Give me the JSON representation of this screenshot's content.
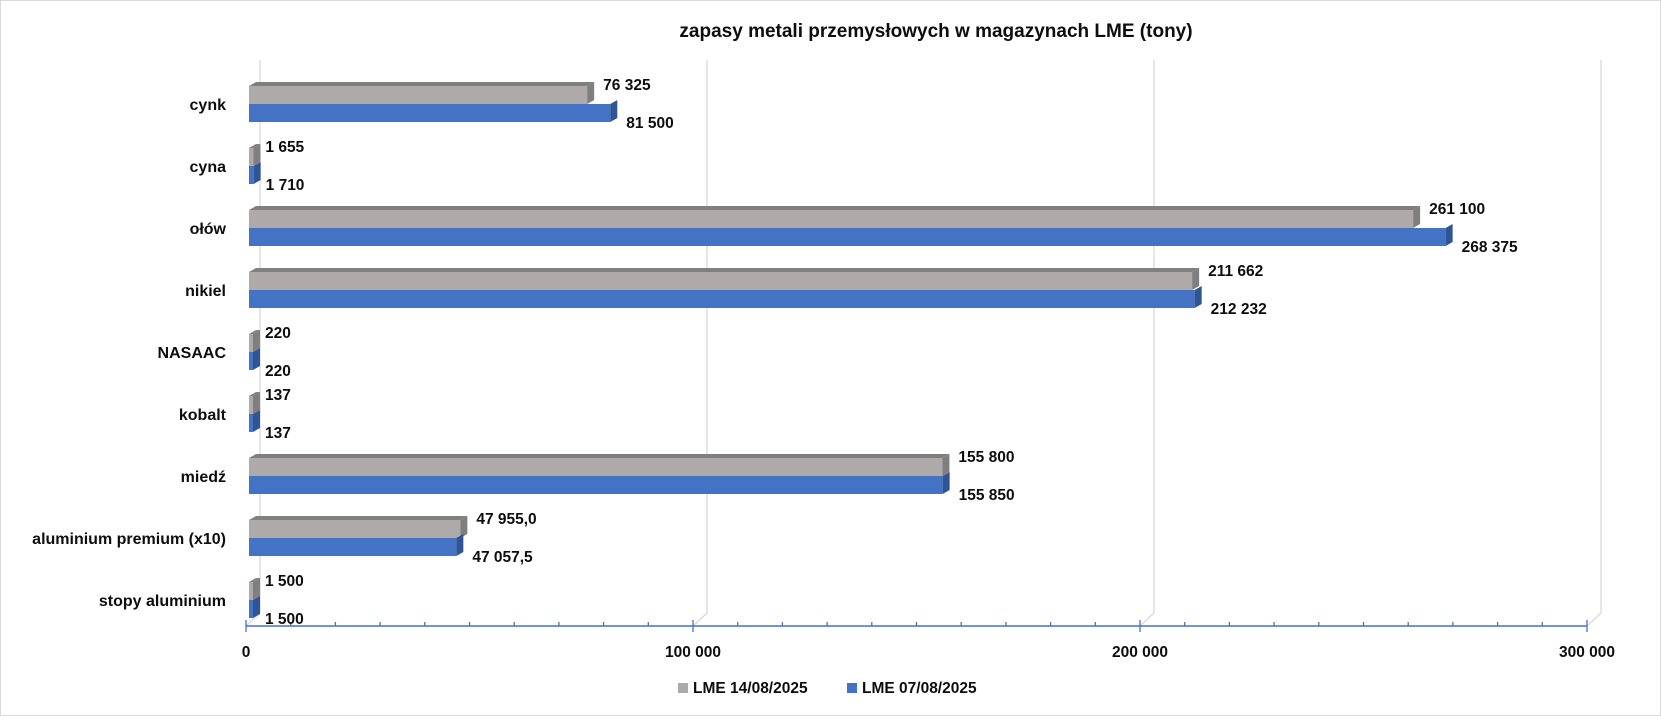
{
  "chart_data": {
    "type": "bar",
    "orientation": "horizontal",
    "style": "3d-clustered",
    "title": "zapasy metali przemysłowych w magazynach LME (tony)",
    "xlabel": "",
    "ylabel": "",
    "categories": [
      "cynk",
      "cyna",
      "ołów",
      "nikiel",
      "NASAAC",
      "kobalt",
      "miedź",
      "aluminium premium (x10)",
      "stopy aluminium"
    ],
    "series": [
      {
        "name": "LME 14/08/2025",
        "color": "#ADAAA9",
        "side_color": "#7F7F7F",
        "values": [
          76325,
          1655,
          261100,
          211662,
          220,
          137,
          155800,
          47955.0,
          1500
        ],
        "labels": [
          "76 325",
          "1 655",
          "261 100",
          "211 662",
          "220",
          "137",
          "155 800",
          "47 955,0",
          "1 500"
        ]
      },
      {
        "name": "LME 07/08/2025",
        "color": "#4472C4",
        "side_color": "#2F5597",
        "values": [
          81500,
          1710,
          268375,
          212232,
          220,
          137,
          155850,
          47057.5,
          1500
        ],
        "labels": [
          "81 500",
          "1 710",
          "268 375",
          "212 232",
          "220",
          "137",
          "155 850",
          "47 057,5",
          "1 500"
        ]
      }
    ],
    "xlim": [
      0,
      300000
    ],
    "x_ticks": [
      0,
      100000,
      200000,
      300000
    ],
    "x_tick_labels": [
      "0",
      "100 000",
      "200 000",
      "300 000"
    ],
    "x_minor_step": 10000,
    "grid": true,
    "legend_position": "bottom",
    "axis_color": "#4472C4",
    "grid_color": "#D9D9D9"
  }
}
